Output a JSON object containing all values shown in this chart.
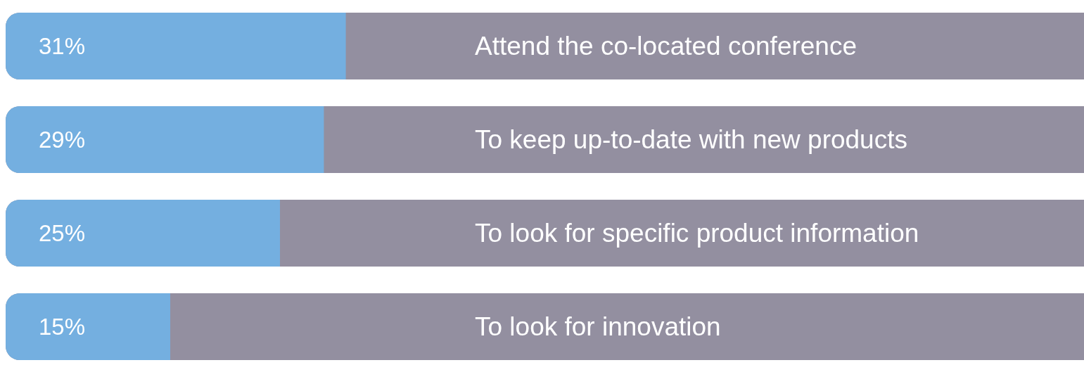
{
  "chart_data": {
    "type": "bar",
    "orientation": "horizontal",
    "categories": [
      "Attend the co-located conference",
      "To keep up-to-date with new products",
      "To look for specific product information",
      "To look for innovation"
    ],
    "values": [
      31,
      29,
      25,
      15
    ],
    "value_labels": [
      "31%",
      "29%",
      "25%",
      "15%"
    ],
    "color": "#74afe0",
    "tick_labels": false
  }
}
